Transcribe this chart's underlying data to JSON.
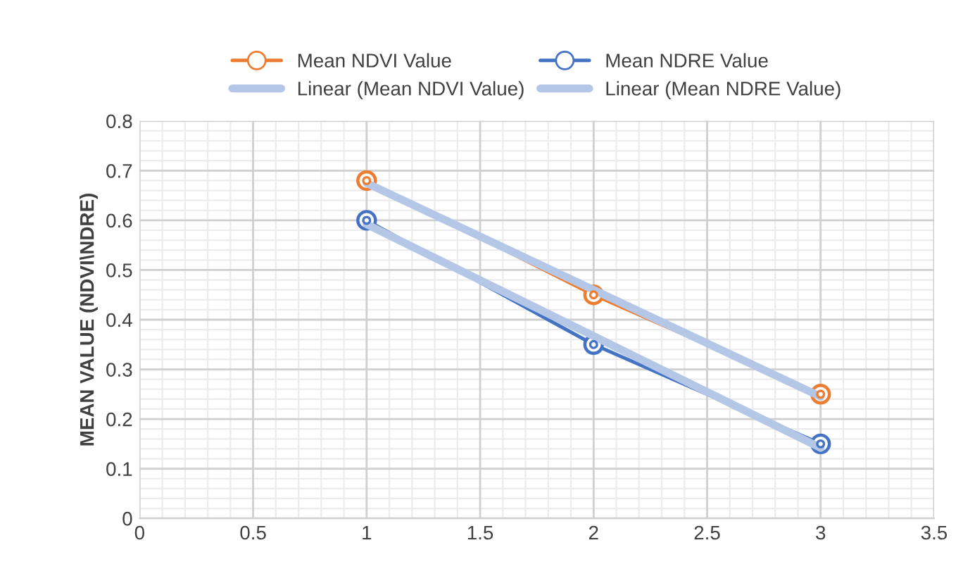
{
  "chart_data": {
    "type": "line",
    "ylabel": "MEAN VALUE (NDVI\\NDRE)",
    "xlim": [
      0,
      3.5
    ],
    "xticks": [
      0,
      0.5,
      1,
      1.5,
      2,
      2.5,
      3,
      3.5
    ],
    "ylim": [
      0,
      0.8
    ],
    "yticks": [
      0,
      0.1,
      0.2,
      0.3,
      0.4,
      0.5,
      0.6,
      0.7,
      0.8
    ],
    "grid": true,
    "legend": "top",
    "marker": "circle",
    "series": [
      {
        "name": "Mean NDVI Value",
        "color": "#ed7d31",
        "x": [
          1,
          2,
          3
        ],
        "values": [
          0.68,
          0.45,
          0.25
        ]
      },
      {
        "name": "Mean NDRE Value",
        "color": "#4472c4",
        "x": [
          1,
          2,
          3
        ],
        "values": [
          0.6,
          0.35,
          0.15
        ]
      },
      {
        "name": "Linear (Mean NDVI Value)",
        "color": "#b4c7e7",
        "type": "line",
        "marker": "none",
        "x": [
          1,
          3
        ],
        "values": [
          0.675,
          0.245
        ]
      },
      {
        "name": "Linear (Mean NDRE Value)",
        "color": "#b4c7e7",
        "type": "line",
        "marker": "none",
        "x": [
          1,
          3
        ],
        "values": [
          0.592,
          0.142
        ]
      }
    ]
  }
}
